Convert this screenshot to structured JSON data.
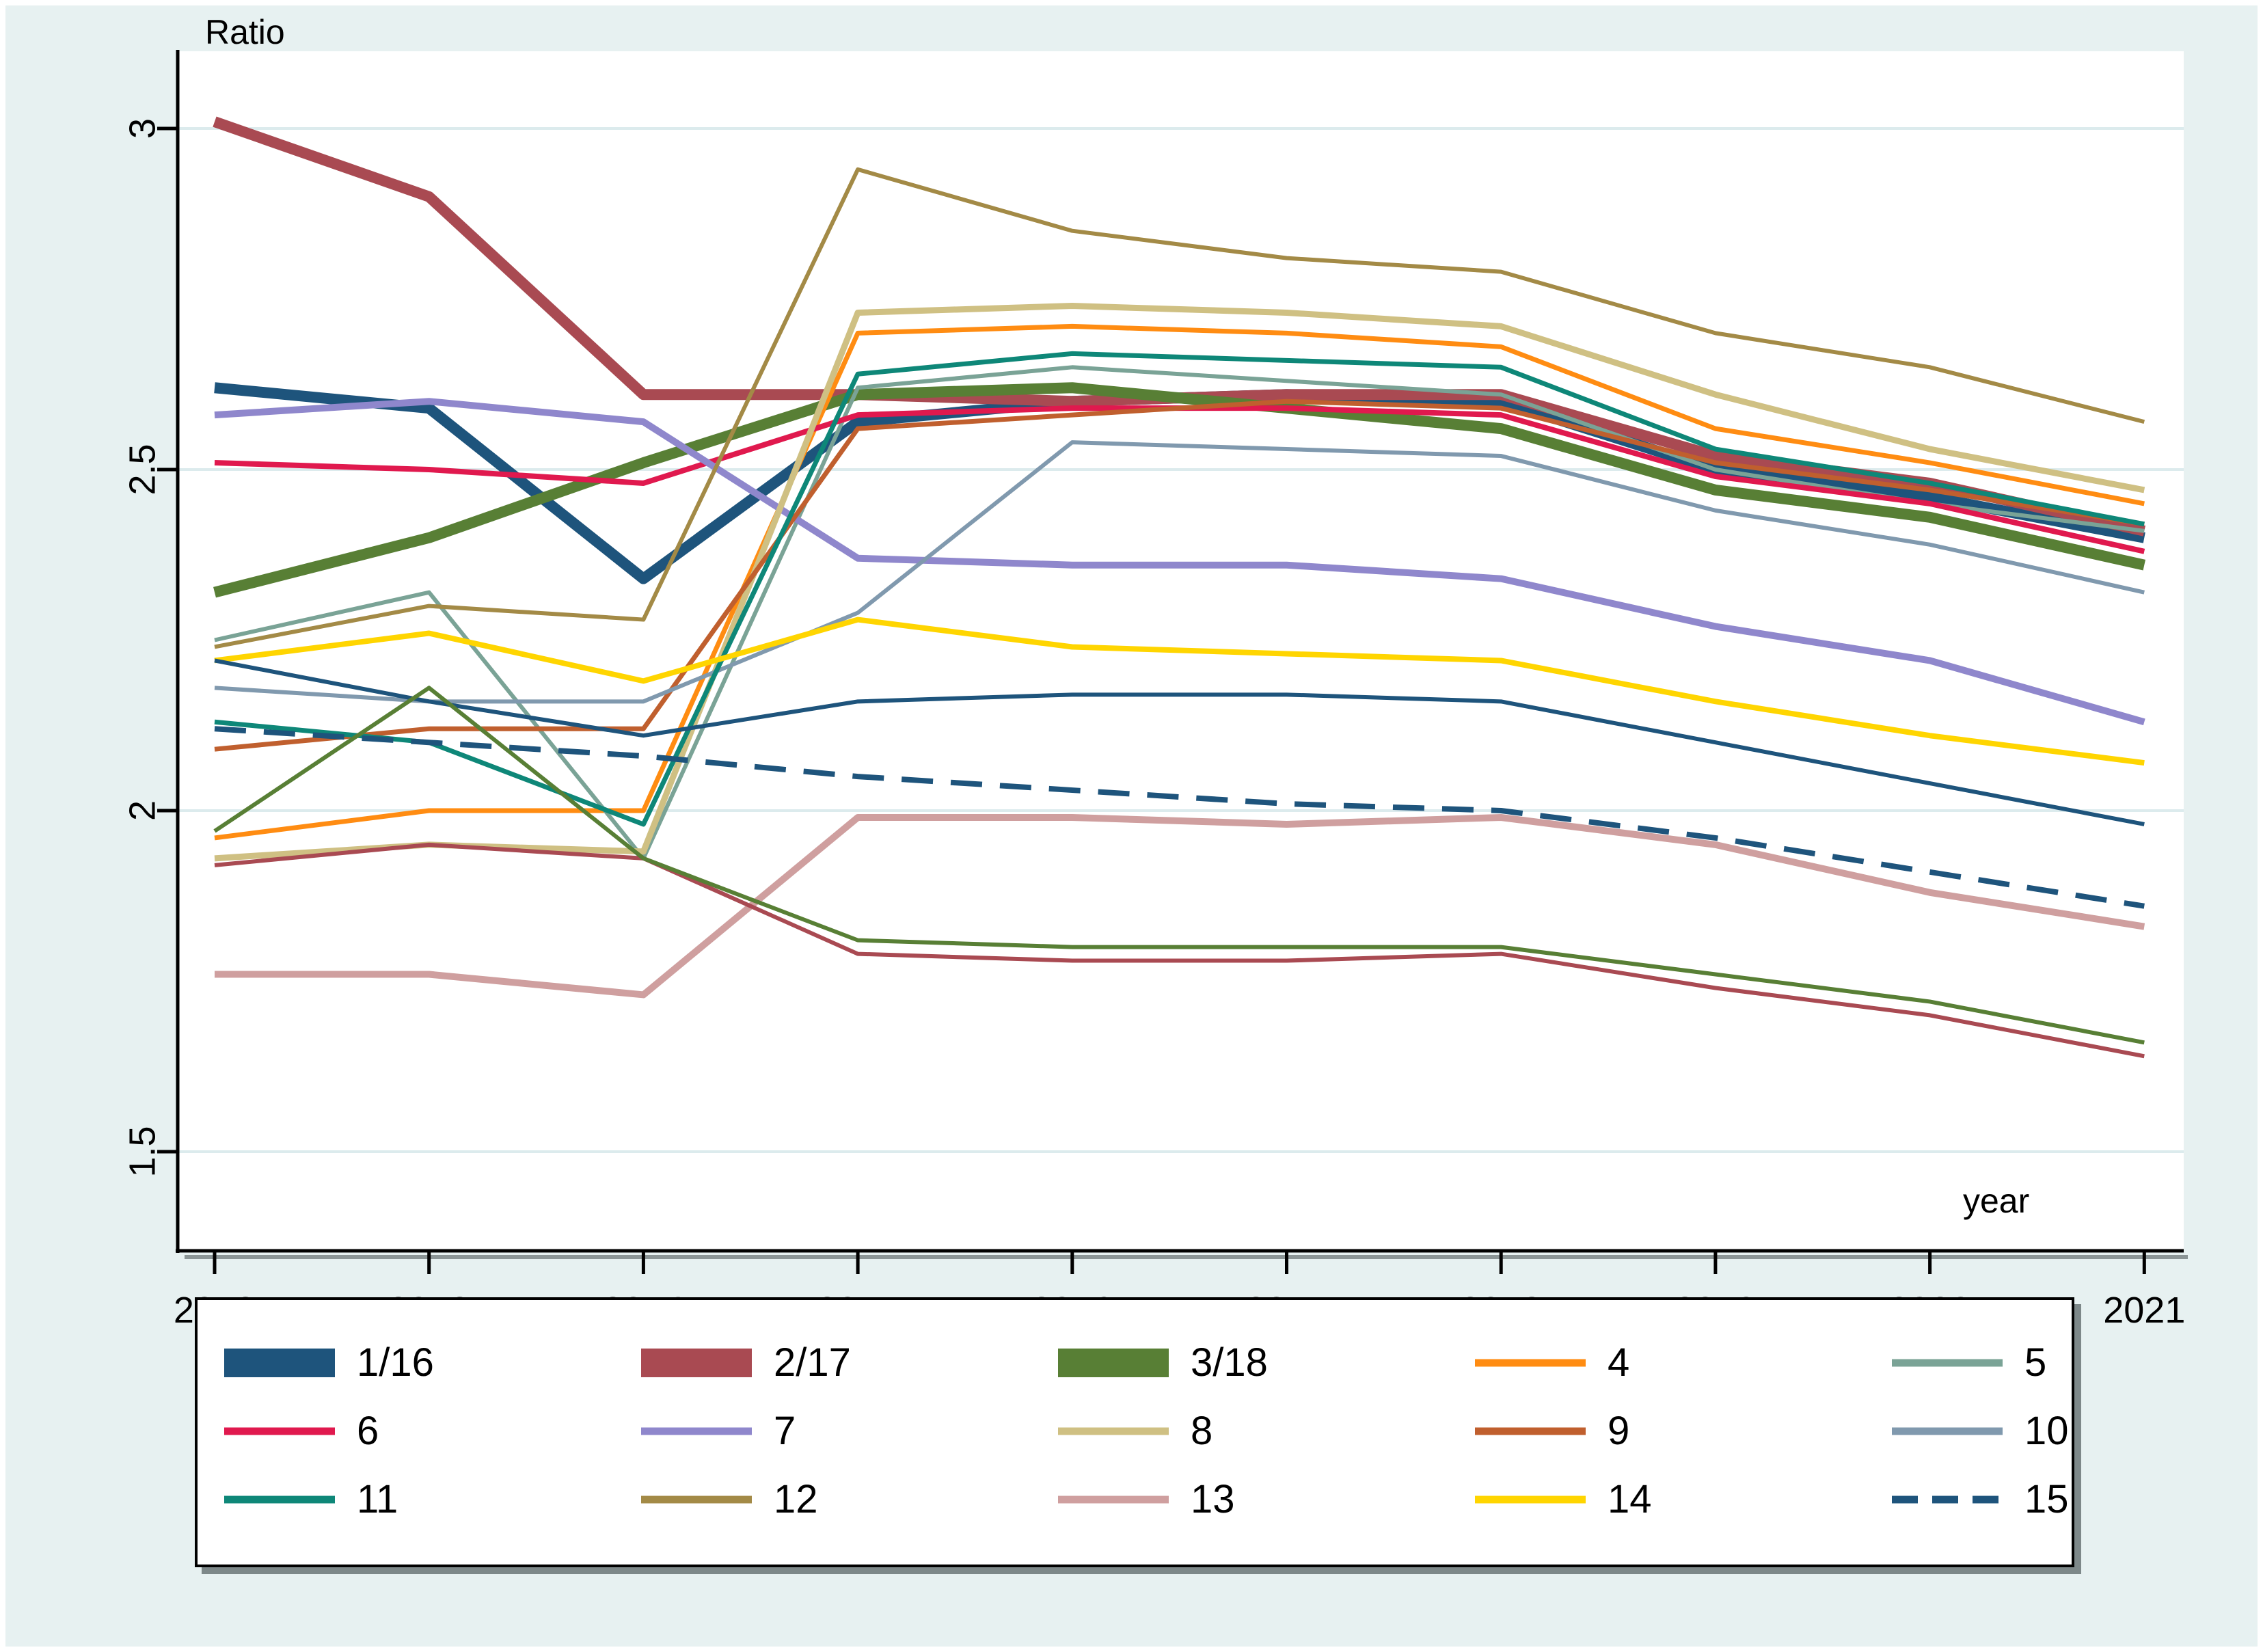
{
  "chart_data": {
    "type": "line",
    "title": "",
    "ylabel": "Ratio",
    "xlabel": "year",
    "x": [
      2012,
      2013,
      2014,
      2015,
      2016,
      2017,
      2018,
      2019,
      2020,
      2021
    ],
    "x_tick_labels": [
      "2012",
      "2013",
      "2014",
      "2015",
      "2016",
      "2017",
      "2018",
      "2019",
      "2020",
      "2021"
    ],
    "y_ticks": [
      3,
      2.5,
      2,
      1.5
    ],
    "y_tick_labels": [
      "3",
      "2.5",
      "2",
      "1.5"
    ],
    "ylim": [
      1.36,
      3.11
    ],
    "grid": "horizontal",
    "legend_position": "bottom",
    "layout": {
      "background_color": "#e7f1f1",
      "plot_background_color": "#ffffff",
      "grid_color": "#dcebed",
      "axis_color": "#000000",
      "axis_shadow_color": "#8b9596"
    },
    "series": [
      {
        "id": "1",
        "legend_group": "1/16",
        "color": "#1e547c",
        "width": 16,
        "dashed": false,
        "values": [
          2.62,
          2.59,
          2.34,
          2.57,
          2.6,
          2.61,
          2.6,
          2.5,
          2.46,
          2.4
        ]
      },
      {
        "id": "2",
        "legend_group": "2/17",
        "color": "#a94a52",
        "width": 16,
        "dashed": false,
        "values": [
          3.01,
          2.9,
          2.61,
          2.61,
          2.6,
          2.61,
          2.61,
          2.52,
          2.48,
          2.41
        ]
      },
      {
        "id": "3",
        "legend_group": "3/18",
        "color": "#587f35",
        "width": 16,
        "dashed": false,
        "values": [
          2.32,
          2.4,
          2.51,
          2.61,
          2.62,
          2.59,
          2.56,
          2.47,
          2.43,
          2.36
        ]
      },
      {
        "id": "4",
        "legend_group": "4",
        "color": "#ff8c12",
        "width": 7,
        "dashed": false,
        "values": [
          1.96,
          2.0,
          2.0,
          2.7,
          2.71,
          2.7,
          2.68,
          2.56,
          2.51,
          2.45
        ]
      },
      {
        "id": "5",
        "legend_group": "5",
        "color": "#7aa396",
        "width": 6,
        "dashed": false,
        "values": [
          2.25,
          2.32,
          1.93,
          2.62,
          2.65,
          2.63,
          2.61,
          2.5,
          2.45,
          2.41
        ]
      },
      {
        "id": "6",
        "legend_group": "6",
        "color": "#e0194e",
        "width": 8,
        "dashed": false,
        "values": [
          2.51,
          2.5,
          2.48,
          2.58,
          2.59,
          2.59,
          2.58,
          2.49,
          2.45,
          2.38
        ]
      },
      {
        "id": "7",
        "legend_group": "7",
        "color": "#8f87cc",
        "width": 10,
        "dashed": false,
        "values": [
          2.58,
          2.6,
          2.57,
          2.37,
          2.36,
          2.36,
          2.34,
          2.27,
          2.22,
          2.13
        ]
      },
      {
        "id": "8",
        "legend_group": "8",
        "color": "#cfc083",
        "width": 9,
        "dashed": false,
        "values": [
          1.93,
          1.95,
          1.94,
          2.73,
          2.74,
          2.73,
          2.71,
          2.61,
          2.53,
          2.47
        ]
      },
      {
        "id": "9",
        "legend_group": "9",
        "color": "#c05f2e",
        "width": 7,
        "dashed": false,
        "values": [
          2.09,
          2.12,
          2.12,
          2.56,
          2.58,
          2.6,
          2.59,
          2.51,
          2.47,
          2.42
        ]
      },
      {
        "id": "10",
        "legend_group": "10",
        "color": "#8099ae",
        "width": 6,
        "dashed": false,
        "values": [
          2.18,
          2.16,
          2.16,
          2.29,
          2.54,
          2.53,
          2.52,
          2.44,
          2.39,
          2.32
        ]
      },
      {
        "id": "11",
        "legend_group": "11",
        "color": "#0e8778",
        "width": 7,
        "dashed": false,
        "values": [
          2.13,
          2.1,
          1.98,
          2.64,
          2.67,
          2.66,
          2.65,
          2.53,
          2.48,
          2.42
        ]
      },
      {
        "id": "12",
        "legend_group": "12",
        "color": "#a38a46",
        "width": 6,
        "dashed": false,
        "values": [
          2.24,
          2.3,
          2.28,
          2.94,
          2.85,
          2.81,
          2.79,
          2.7,
          2.65,
          2.57
        ]
      },
      {
        "id": "13",
        "legend_group": "13",
        "color": "#cf9f9f",
        "width": 10,
        "dashed": false,
        "values": [
          1.76,
          1.76,
          1.73,
          1.99,
          1.99,
          1.98,
          1.99,
          1.95,
          1.88,
          1.83
        ]
      },
      {
        "id": "14",
        "legend_group": "14",
        "color": "#ffd500",
        "width": 8,
        "dashed": false,
        "values": [
          2.22,
          2.26,
          2.19,
          2.28,
          2.24,
          2.23,
          2.22,
          2.16,
          2.11,
          2.07
        ]
      },
      {
        "id": "15",
        "legend_group": "15",
        "color": "#1e547c",
        "width": 8,
        "dashed": true,
        "values": [
          2.12,
          2.1,
          2.08,
          2.05,
          2.03,
          2.01,
          2.0,
          1.96,
          1.91,
          1.86
        ]
      },
      {
        "id": "16",
        "legend_group": "1/16",
        "color": "#1e547c",
        "width": 6,
        "dashed": false,
        "values": [
          2.22,
          2.16,
          2.11,
          2.16,
          2.17,
          2.17,
          2.16,
          2.1,
          2.04,
          1.98
        ]
      },
      {
        "id": "17",
        "legend_group": "2/17",
        "color": "#a94a52",
        "width": 6,
        "dashed": false,
        "values": [
          1.92,
          1.95,
          1.93,
          1.79,
          1.78,
          1.78,
          1.79,
          1.74,
          1.7,
          1.64
        ]
      },
      {
        "id": "18",
        "legend_group": "3/18",
        "color": "#587f35",
        "width": 6,
        "dashed": false,
        "values": [
          1.97,
          2.18,
          1.93,
          1.81,
          1.8,
          1.8,
          1.8,
          1.76,
          1.72,
          1.66
        ]
      }
    ]
  },
  "legend": {
    "entries": [
      {
        "label": "1/16",
        "color": "#1e547c",
        "style": "thick"
      },
      {
        "label": "2/17",
        "color": "#a94a52",
        "style": "thick"
      },
      {
        "label": "3/18",
        "color": "#587f35",
        "style": "thick"
      },
      {
        "label": "4",
        "color": "#ff8c12",
        "style": "thin"
      },
      {
        "label": "5",
        "color": "#7aa396",
        "style": "thin"
      },
      {
        "label": "6",
        "color": "#e0194e",
        "style": "thin"
      },
      {
        "label": "7",
        "color": "#8f87cc",
        "style": "thin"
      },
      {
        "label": "8",
        "color": "#cfc083",
        "style": "thin"
      },
      {
        "label": "9",
        "color": "#c05f2e",
        "style": "thin"
      },
      {
        "label": "10",
        "color": "#8099ae",
        "style": "thin"
      },
      {
        "label": "11",
        "color": "#0e8778",
        "style": "thin"
      },
      {
        "label": "12",
        "color": "#a38a46",
        "style": "thin"
      },
      {
        "label": "13",
        "color": "#cf9f9f",
        "style": "thin"
      },
      {
        "label": "14",
        "color": "#ffd500",
        "style": "thin"
      },
      {
        "label": "15",
        "color": "#1e547c",
        "style": "dashed"
      }
    ]
  }
}
